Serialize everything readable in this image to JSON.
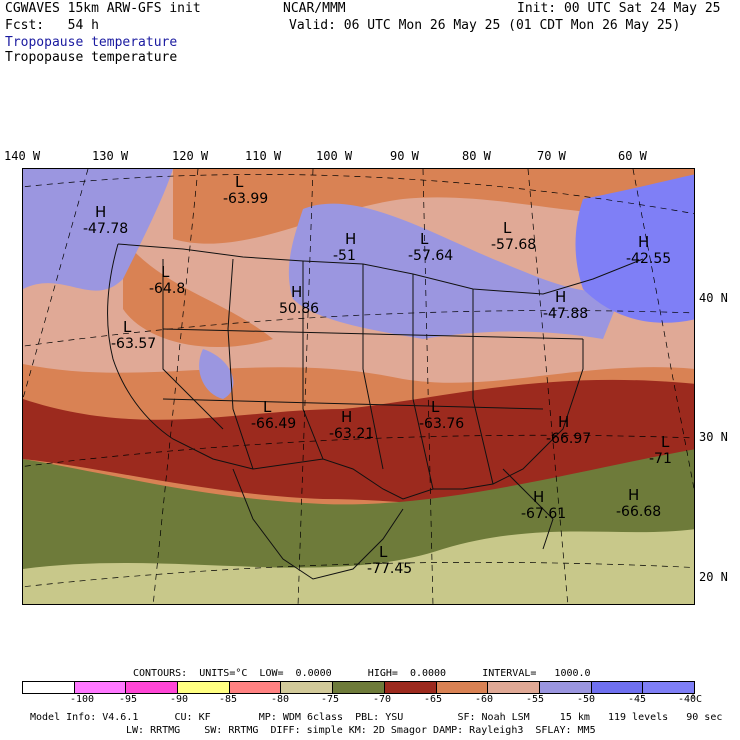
{
  "header": {
    "model": "CGWAVES 15km ARW-GFS init",
    "org": "NCAR/MMM",
    "init": "Init: 00 UTC Sat 24 May 25",
    "fcst": "Fcst:   54 h",
    "valid": "Valid: 06 UTC Mon 26 May 25 (01 CDT Mon 26 May 25)",
    "field1": "Tropopause temperature",
    "field2": "Tropopause temperature"
  },
  "axes": {
    "lon_labels": [
      "140 W",
      "130 W",
      "120 W",
      "110 W",
      "100 W",
      "90 W",
      "80 W",
      "70 W",
      "60 W"
    ],
    "lat_labels": [
      "40 N",
      "30 N",
      "20 N"
    ]
  },
  "map_labels": [
    {
      "letter": "L",
      "value": "-63.99"
    },
    {
      "letter": "H",
      "value": "-47.78"
    },
    {
      "letter": "H",
      "value": "-51"
    },
    {
      "letter": "L",
      "value": "-57.64"
    },
    {
      "letter": "L",
      "value": "-57.68"
    },
    {
      "letter": "H",
      "value": "-42.55"
    },
    {
      "letter": "L",
      "value": "-64.8"
    },
    {
      "letter": "H",
      "value": "50.86"
    },
    {
      "letter": "H",
      "value": "-47.88"
    },
    {
      "letter": "L",
      "value": "-63.57"
    },
    {
      "letter": "L",
      "value": "-66.49"
    },
    {
      "letter": "H",
      "value": "-63.21"
    },
    {
      "letter": "L",
      "value": "-63.76"
    },
    {
      "letter": "H",
      "value": "-66.97"
    },
    {
      "letter": "L",
      "value": "-71"
    },
    {
      "letter": "H",
      "value": "-67.61"
    },
    {
      "letter": "H",
      "value": "-66.68"
    },
    {
      "letter": "L",
      "value": "-77.45"
    }
  ],
  "contours": "CONTOURS:  UNITS=°C  LOW=  0.0000      HIGH=  0.0000      INTERVAL=   1000.0",
  "colorbar": {
    "colors": [
      "#ffffff",
      "#ff78ff",
      "#ff46d6",
      "#ffff82",
      "#ff8282",
      "#d2ca9a",
      "#6e7b3a",
      "#9c2a1e",
      "#d98254",
      "#e0a996",
      "#9b96e0",
      "#6f70f0",
      "#7f7ff6"
    ],
    "labels": [
      "-100",
      "-95",
      "-90",
      "-85",
      "-80",
      "-75",
      "-70",
      "-65",
      "-60",
      "-55",
      "-50",
      "-45",
      "-40",
      "°C"
    ]
  },
  "footer": {
    "line1": "Model Info: V4.6.1      CU: KF        MP: WDM 6class  PBL: YSU         SF: Noah LSM     15 km   119 levels   90 sec",
    "line2": "LW: RRTMG    SW: RRTMG  DIFF: simple KM: 2D Smagor DAMP: Rayleigh3  SFLAY: MM5"
  }
}
